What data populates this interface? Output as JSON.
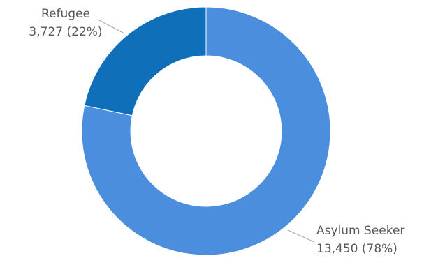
{
  "chart_data": {
    "type": "pie",
    "variant": "donut",
    "slices": [
      {
        "name": "Refugee",
        "value": 3727,
        "value_label": "3,727",
        "percent_label": "(22%)",
        "color": "#0F6FB8"
      },
      {
        "name": "Asylum Seeker",
        "value": 13450,
        "value_label": "13,450",
        "percent_label": "(78%)",
        "color": "#4A8EDD"
      }
    ],
    "legend": "none"
  }
}
